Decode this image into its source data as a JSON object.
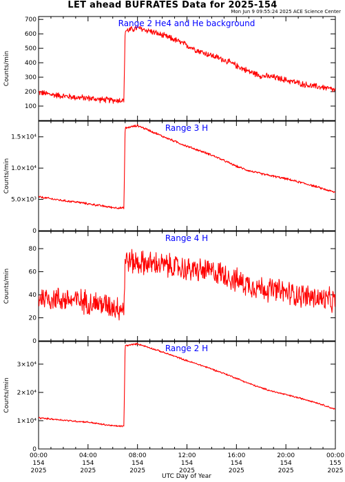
{
  "header": {
    "title": "LET ahead BUFRATES Data for 2025-154",
    "timestamp": "Mon Jun  9 09:55:24 2025 ACE Science Center"
  },
  "colors": {
    "series": "#ff0000",
    "label": "#0000ff",
    "axis": "#000000"
  },
  "chart_data": [
    {
      "type": "line",
      "title": "Range 2 He4 and He background",
      "ylabel": "Counts/min",
      "xlabel": "",
      "ylim": [
        0,
        720
      ],
      "x_unit": "hours UTC",
      "yticks": [
        {
          "v": 100,
          "label": "100"
        },
        {
          "v": 200,
          "label": "200"
        },
        {
          "v": 300,
          "label": "300"
        },
        {
          "v": 400,
          "label": "400"
        },
        {
          "v": 500,
          "label": "500"
        },
        {
          "v": 600,
          "label": "600"
        },
        {
          "v": 700,
          "label": "700"
        }
      ],
      "series": [
        {
          "x": [
            0,
            1,
            2,
            3,
            4,
            5,
            6,
            6.9,
            7.0,
            7.5,
            8,
            9,
            10,
            11,
            12,
            13,
            14,
            15,
            16,
            17,
            18,
            19,
            20,
            21,
            22,
            23,
            24
          ],
          "y": [
            195,
            180,
            170,
            160,
            155,
            145,
            140,
            140,
            620,
            630,
            640,
            620,
            590,
            560,
            520,
            480,
            450,
            420,
            380,
            340,
            310,
            300,
            280,
            260,
            240,
            230,
            210
          ]
        }
      ],
      "noise": 18
    },
    {
      "type": "line",
      "title": "Range 3 H",
      "ylabel": "Counts/min",
      "xlabel": "",
      "ylim": [
        0,
        17500
      ],
      "x_unit": "hours UTC",
      "yticks": [
        {
          "v": 0,
          "label": "0"
        },
        {
          "v": 5000,
          "label": "5.0×10³"
        },
        {
          "v": 10000,
          "label": "1.0×10⁴"
        },
        {
          "v": 15000,
          "label": "1.5×10⁴"
        }
      ],
      "series": [
        {
          "x": [
            0,
            1,
            2,
            3,
            4,
            5,
            6,
            6.9,
            7.0,
            8,
            9,
            10,
            11,
            12,
            13,
            14,
            15,
            16,
            17,
            18,
            19,
            20,
            21,
            22,
            23,
            24
          ],
          "y": [
            5400,
            5100,
            4800,
            4600,
            4300,
            4000,
            3700,
            3600,
            16400,
            16800,
            16000,
            15100,
            14300,
            13500,
            12800,
            12100,
            11200,
            10300,
            9600,
            9100,
            8700,
            8300,
            7800,
            7300,
            6700,
            6100
          ]
        }
      ],
      "noise": 150
    },
    {
      "type": "line",
      "title": "Range 4 H",
      "ylabel": "Counts/min",
      "xlabel": "",
      "ylim": [
        0,
        95
      ],
      "x_unit": "hours UTC",
      "yticks": [
        {
          "v": 0,
          "label": "0"
        },
        {
          "v": 20,
          "label": "20"
        },
        {
          "v": 40,
          "label": "40"
        },
        {
          "v": 60,
          "label": "60"
        },
        {
          "v": 80,
          "label": "80"
        }
      ],
      "series": [
        {
          "x": [
            0,
            2,
            4,
            6,
            6.9,
            7.0,
            8,
            10,
            12,
            14,
            15,
            16,
            18,
            20,
            22,
            24
          ],
          "y": [
            38,
            36,
            34,
            30,
            28,
            70,
            68,
            66,
            62,
            60,
            58,
            52,
            46,
            42,
            38,
            34
          ]
        }
      ],
      "noise": 9
    },
    {
      "type": "line",
      "title": "Range 2 H",
      "ylabel": "Counts/min",
      "xlabel": "UTC Day of Year",
      "ylim": [
        0,
        38000
      ],
      "x_unit": "hours UTC",
      "yticks": [
        {
          "v": 0,
          "label": "0"
        },
        {
          "v": 10000,
          "label": "1×10⁴"
        },
        {
          "v": 20000,
          "label": "2×10⁴"
        },
        {
          "v": 30000,
          "label": "3×10⁴"
        }
      ],
      "xticks": [
        {
          "v": 0,
          "labels": [
            "00:00",
            "154",
            "2025"
          ]
        },
        {
          "v": 4,
          "labels": [
            "04:00",
            "154",
            "2025"
          ]
        },
        {
          "v": 8,
          "labels": [
            "08:00",
            "154",
            "2025"
          ]
        },
        {
          "v": 12,
          "labels": [
            "12:00",
            "154",
            "2025"
          ]
        },
        {
          "v": 16,
          "labels": [
            "16:00",
            "154",
            "2025"
          ]
        },
        {
          "v": 20,
          "labels": [
            "20:00",
            "154",
            "2025"
          ]
        },
        {
          "v": 24,
          "labels": [
            "00:00",
            "155",
            "2025"
          ]
        }
      ],
      "series": [
        {
          "x": [
            0,
            1,
            2,
            3,
            4,
            5,
            6,
            6.9,
            7.0,
            8,
            9,
            10,
            11,
            12,
            13,
            14,
            15,
            16,
            17,
            18,
            19,
            20,
            21,
            22,
            23,
            24
          ],
          "y": [
            11000,
            10600,
            10200,
            9800,
            9500,
            8800,
            8200,
            8000,
            36500,
            37200,
            35800,
            34300,
            32800,
            31200,
            29800,
            28300,
            26700,
            25000,
            23200,
            21600,
            20300,
            19200,
            18100,
            17000,
            15600,
            14000
          ]
        }
      ],
      "noise": 250
    }
  ]
}
